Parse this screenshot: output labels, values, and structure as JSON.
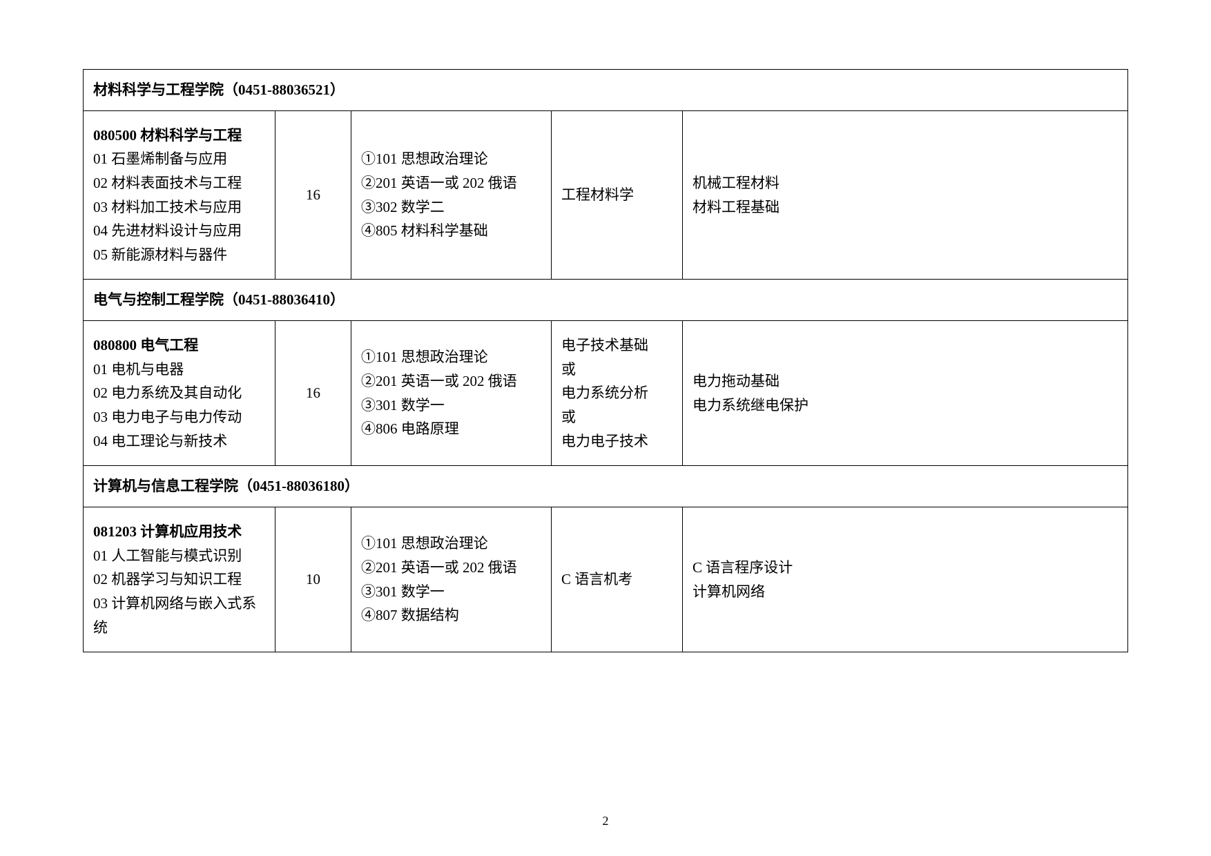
{
  "page_number": "2",
  "table": {
    "colleges": [
      {
        "header": "材料科学与工程学院（0451-88036521）",
        "major_code": "080500 材料科学与工程",
        "directions": [
          "01 石墨烯制备与应用",
          "02 材料表面技术与工程",
          "03 材料加工技术与应用",
          "04 先进材料设计与应用",
          "05 新能源材料与器件"
        ],
        "quota": "16",
        "exams": [
          "①101 思想政治理论",
          "②201 英语一或 202 俄语",
          "③302 数学二",
          "④805 材料科学基础"
        ],
        "retest": [
          "工程材料学"
        ],
        "refs": [
          "机械工程材料",
          "材料工程基础"
        ]
      },
      {
        "header": "电气与控制工程学院（0451-88036410）",
        "major_code": "080800 电气工程",
        "directions": [
          "01 电机与电器",
          "02 电力系统及其自动化",
          "03 电力电子与电力传动",
          "04 电工理论与新技术"
        ],
        "quota": "16",
        "exams": [
          "①101 思想政治理论",
          "②201 英语一或 202 俄语",
          "③301 数学一",
          "④806 电路原理"
        ],
        "retest": [
          "电子技术基础",
          "或",
          "电力系统分析",
          "或",
          "电力电子技术"
        ],
        "refs": [
          "电力拖动基础",
          "电力系统继电保护"
        ]
      },
      {
        "header": "计算机与信息工程学院（0451-88036180）",
        "major_code": "081203 计算机应用技术",
        "directions": [
          "01 人工智能与模式识别",
          "02 机器学习与知识工程",
          "03 计算机网络与嵌入式系统"
        ],
        "quota": "10",
        "exams": [
          "①101 思想政治理论",
          "②201 英语一或 202 俄语",
          "③301 数学一",
          "④807 数据结构"
        ],
        "retest": [
          "C 语言机考"
        ],
        "refs": [
          "C 语言程序设计",
          "计算机网络"
        ]
      }
    ]
  }
}
